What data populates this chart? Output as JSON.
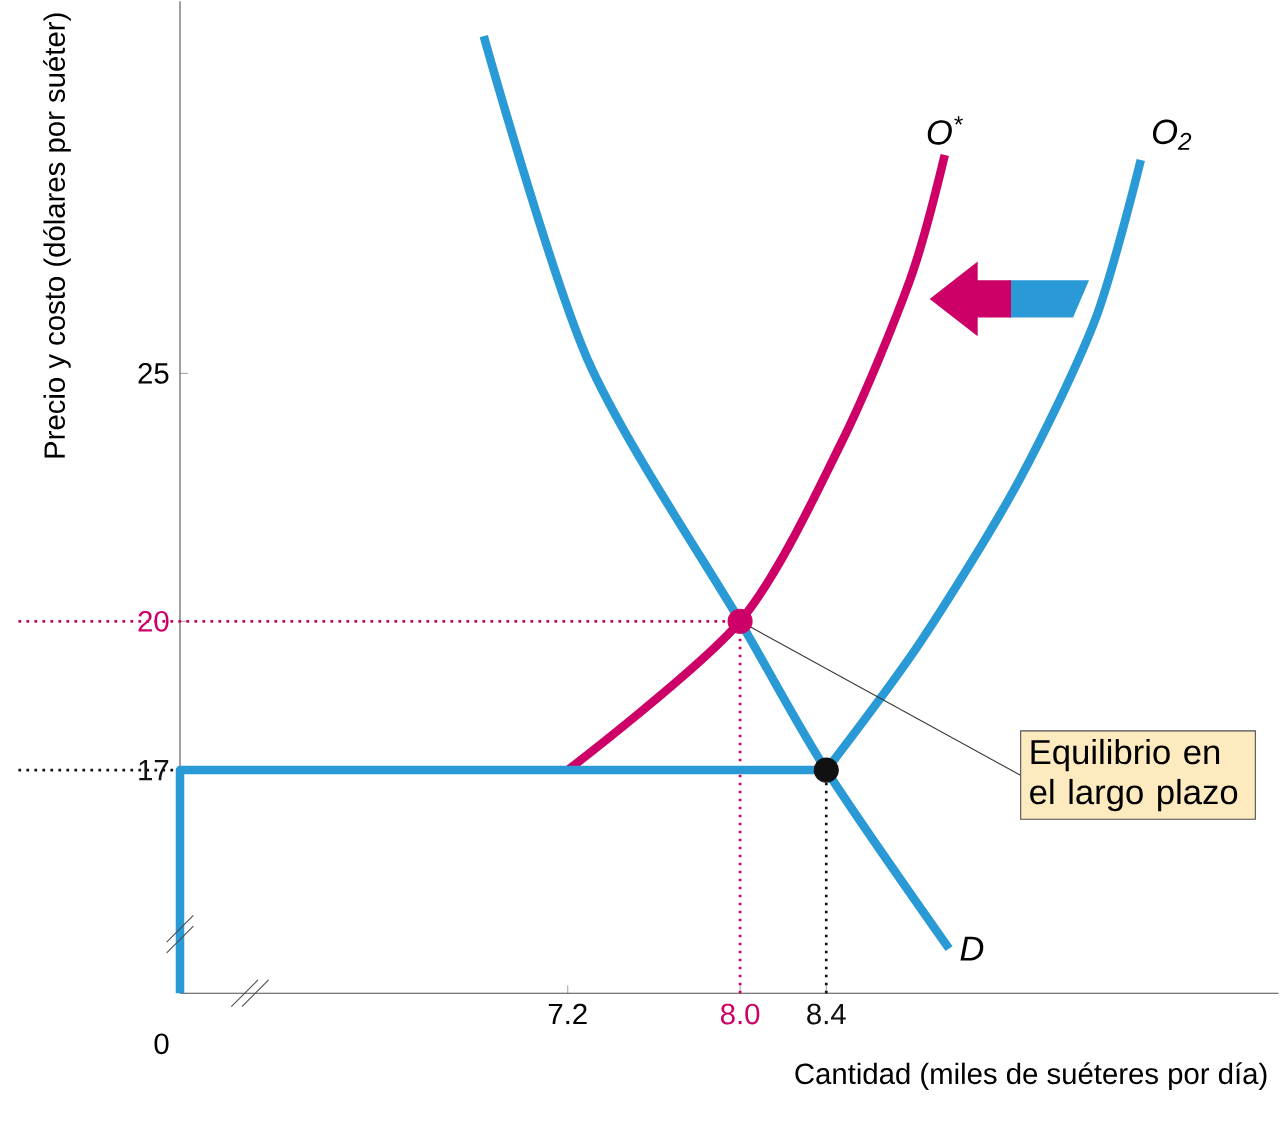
{
  "chart_data": {
    "type": "line",
    "xlabel": "Cantidad (miles de suéteres por día)",
    "ylabel": "Precio y costo (dólares por suéter)",
    "xlim": [
      5.4,
      10.5
    ],
    "ylim": [
      12.5,
      32.5
    ],
    "xticks": [
      7.2,
      {
        "value": 8.0,
        "label": "8.0"
      },
      8.4
    ],
    "yticks": [
      17,
      20,
      25
    ],
    "series": [
      {
        "name": "D",
        "color": "#2a9ad6",
        "x": [
          6.81,
          7.29,
          8.0,
          8.4,
          8.97
        ],
        "values": [
          31.8,
          25.3,
          20,
          17,
          13.4
        ]
      },
      {
        "name": "O$^{*}$",
        "color": "#cc0066",
        "x": [
          7.2,
          8.0,
          8.47,
          8.79,
          8.95
        ],
        "values": [
          17,
          20,
          23.6,
          26.9,
          29.4
        ]
      },
      {
        "name": "O$_{2}$",
        "color": "#2a9ad6",
        "x": [
          8.4,
          8.84,
          9.29,
          9.65,
          9.86
        ],
        "values": [
          17,
          19.6,
          22.8,
          26.1,
          29.3
        ]
      },
      {
        "color": "#2a9ad6",
        "x": [
          5.4,
          5.4,
          8.4
        ],
        "values": [
          12.5,
          17,
          17
        ]
      },
      {
        "type": "scatter",
        "marker": "circle",
        "x": [
          8.0,
          8.4
        ],
        "values": [
          20,
          17
        ],
        "colors": [
          "#cc0066",
          "#111111"
        ]
      }
    ],
    "ref_lines": [
      {
        "axis": "y",
        "value": 20,
        "color": "#cc0066",
        "line_style": "dotted"
      },
      {
        "axis": "y",
        "value": 17,
        "color": "#111111",
        "line_style": "dotted"
      },
      {
        "axis": "x",
        "value": 8.0,
        "color": "#cc0066",
        "line_style": "dotted"
      },
      {
        "axis": "x",
        "value": 8.4,
        "color": "#111111",
        "line_style": "dotted"
      }
    ],
    "annotations": [
      {
        "text": "Equilibrio en el largo plazo",
        "x": 8.0,
        "y": 20
      },
      "0"
    ],
    "grid": false,
    "line_style": "solid"
  }
}
